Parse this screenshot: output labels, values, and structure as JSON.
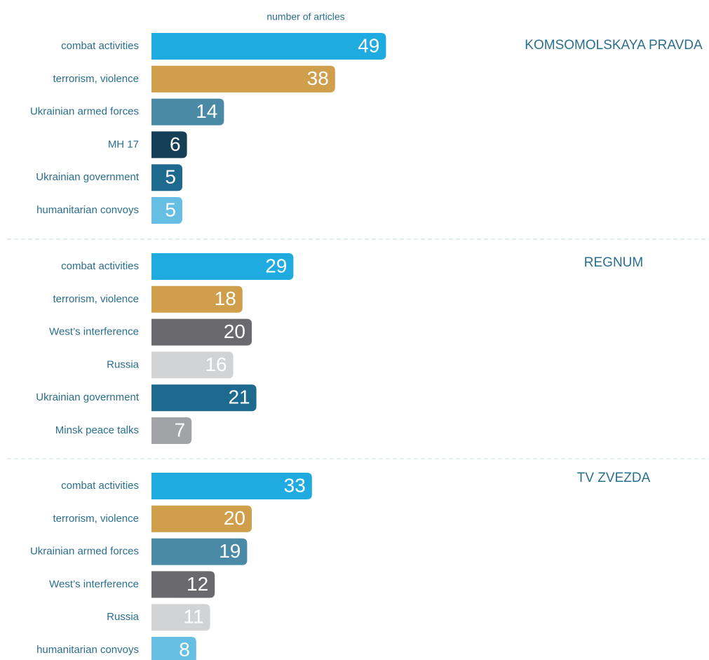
{
  "chart_data": [
    {
      "type": "bar",
      "title": "KOMSOMOLSKAYA PRAVDA",
      "xlabel": "number of articles",
      "categories": [
        "combat activities",
        "terrorism, violence",
        "Ukrainian armed forces",
        "MH 17",
        "Ukrainian government",
        "humanitarian convoys"
      ],
      "values": [
        49,
        38,
        14,
        6,
        5,
        5
      ],
      "colors": [
        "#1fabe0",
        "#cf9f4b",
        "#4a8aa6",
        "#153f57",
        "#1e6a8e",
        "#66bee3"
      ]
    },
    {
      "type": "bar",
      "title": "REGNUM",
      "categories": [
        "combat activities",
        "terrorism, violence",
        "West’s interference",
        "Russia",
        "Ukrainian government",
        "Minsk peace talks"
      ],
      "values": [
        29,
        18,
        20,
        16,
        21,
        7
      ],
      "colors": [
        "#1fabe0",
        "#cf9f4b",
        "#6a6a6e",
        "#d2d3d5",
        "#1e6a8e",
        "#a2a3a7"
      ]
    },
    {
      "type": "bar",
      "title": "TV ZVEZDA",
      "categories": [
        "combat activities",
        "terrorism, violence",
        "Ukrainian armed forces",
        "West’s interference",
        "Russia",
        "humanitarian convoys"
      ],
      "values": [
        33,
        20,
        19,
        12,
        11,
        8
      ],
      "colors": [
        "#1fabe0",
        "#cf9f4b",
        "#4a8aa6",
        "#6a6a6e",
        "#d2d3d5",
        "#66bee3"
      ]
    }
  ]
}
